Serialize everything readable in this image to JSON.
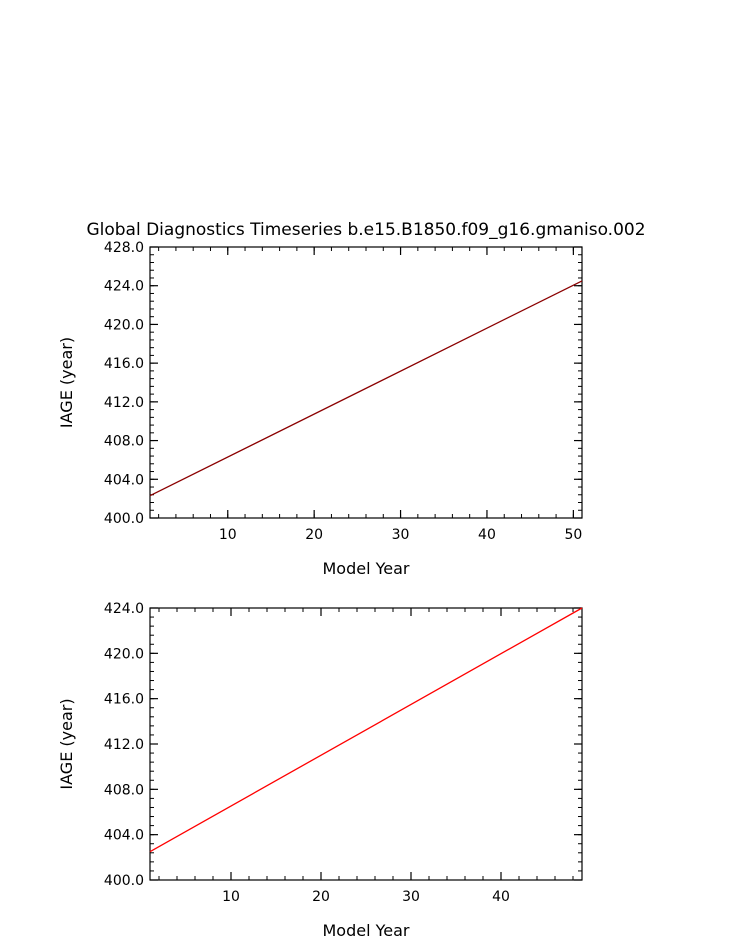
{
  "figure_title": "Global Diagnostics Timeseries b.e15.B1850.f09_g16.gmaniso.002",
  "colors": {
    "upper_line": "#8b0000",
    "lower_line": "#ff0000",
    "axes": "#000000"
  },
  "chart_data": [
    {
      "type": "line",
      "title": "Global Diagnostics Timeseries b.e15.B1850.f09_g16.gmaniso.002",
      "xlabel": "Model Year",
      "ylabel": "IAGE (year)",
      "xlim": [
        1,
        51
      ],
      "ylim": [
        400,
        428
      ],
      "xticks": [
        "10",
        "20",
        "30",
        "40",
        "50"
      ],
      "yticks": [
        "400.0",
        "404.0",
        "408.0",
        "412.0",
        "416.0",
        "420.0",
        "424.0",
        "428.0"
      ],
      "grid": false,
      "series": [
        {
          "x": [
            1,
            51
          ],
          "y": [
            402.3,
            424.5
          ],
          "color": "#8b0000"
        }
      ]
    },
    {
      "type": "line",
      "title": "",
      "xlabel": "Model Year",
      "ylabel": "IAGE (year)",
      "xlim": [
        1,
        49
      ],
      "ylim": [
        400,
        424
      ],
      "xticks": [
        "10",
        "20",
        "30",
        "40"
      ],
      "yticks": [
        "400.0",
        "404.0",
        "408.0",
        "412.0",
        "416.0",
        "420.0",
        "424.0"
      ],
      "grid": false,
      "series": [
        {
          "x": [
            1,
            49
          ],
          "y": [
            402.5,
            424.0
          ],
          "color": "#ff0000"
        }
      ]
    }
  ]
}
